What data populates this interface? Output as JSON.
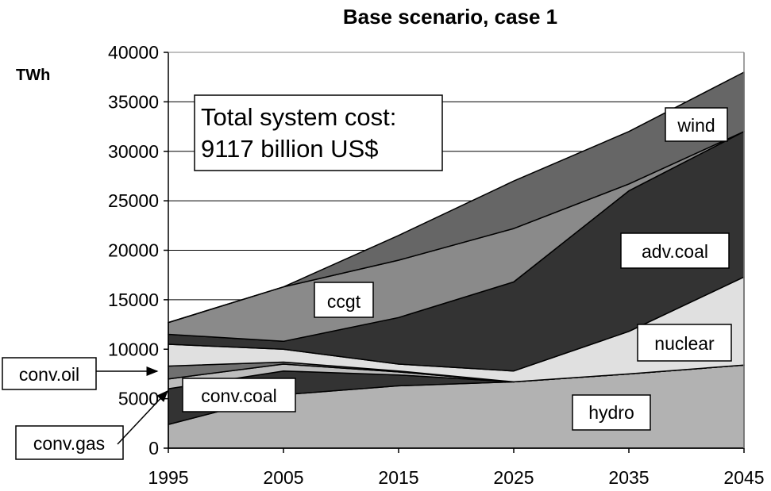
{
  "chart_data": {
    "type": "area",
    "stacked": true,
    "title": "Base scenario, case 1",
    "ylabel": "TWh",
    "xlabel": "",
    "x": [
      1995,
      2005,
      2015,
      2025,
      2035,
      2045
    ],
    "ylim": [
      0,
      40000
    ],
    "yticks": [
      0,
      5000,
      10000,
      15000,
      20000,
      25000,
      30000,
      35000,
      40000
    ],
    "series": [
      {
        "name": "hydro",
        "color": "#b2b2b2",
        "values": [
          2400,
          5400,
          6300,
          6700,
          7500,
          8400
        ]
      },
      {
        "name": "conv.coal",
        "color": "#333333",
        "values": [
          3600,
          2400,
          1100,
          0,
          0,
          0
        ]
      },
      {
        "name": "conv.gas",
        "color": "#bdbdbd",
        "values": [
          1000,
          700,
          300,
          0,
          0,
          0
        ]
      },
      {
        "name": "conv.oil",
        "color": "#707070",
        "values": [
          1300,
          200,
          100,
          0,
          0,
          0
        ]
      },
      {
        "name": "nuclear",
        "color": "#e0e0e0",
        "values": [
          2200,
          1300,
          700,
          1100,
          4300,
          8900
        ]
      },
      {
        "name": "adv.coal",
        "color": "#333333",
        "values": [
          1000,
          800,
          4700,
          9000,
          14200,
          14700
        ]
      },
      {
        "name": "ccgt",
        "color": "#8a8a8a",
        "values": [
          1200,
          5500,
          5800,
          5400,
          700,
          0
        ]
      },
      {
        "name": "wind",
        "color": "#666666",
        "values": [
          0,
          0,
          2500,
          4800,
          5300,
          6000
        ]
      }
    ],
    "annotation": {
      "line1": "Total system cost:",
      "line2": "9117 billion US$"
    },
    "grid": true
  }
}
